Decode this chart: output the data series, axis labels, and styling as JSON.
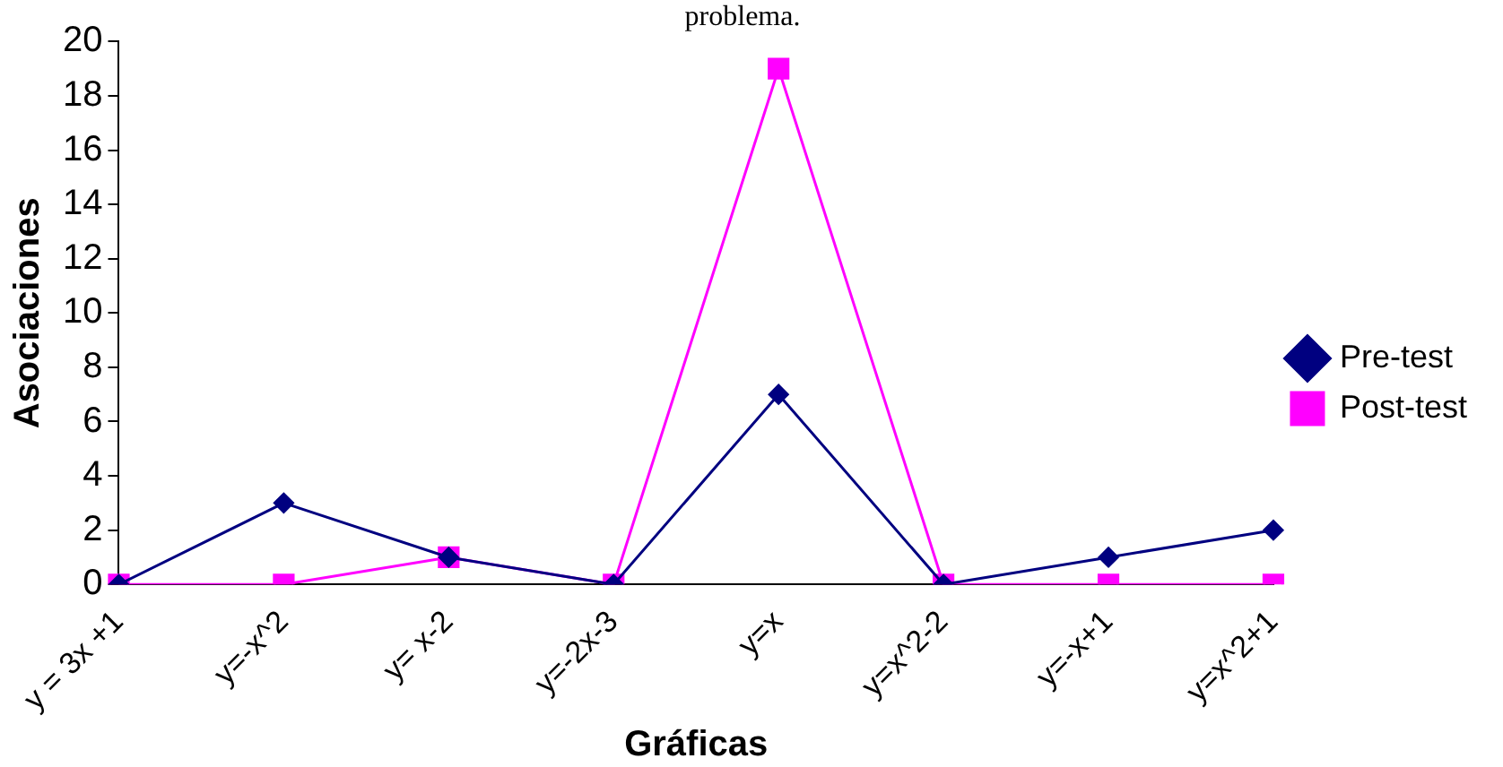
{
  "chart_data": {
    "type": "line",
    "title": "problema.",
    "xlabel": "Gráficas",
    "ylabel": "Asociaciones",
    "categories": [
      "y = 3x +1",
      "y=-x^2",
      "y= x-2",
      "y=-2x-3",
      "y=x",
      "y=x^2-2",
      "y=-x+1",
      "y=x^2+1"
    ],
    "series": [
      {
        "name": "Pre-test",
        "color": "#000080",
        "marker": "diamond",
        "values": [
          0,
          3,
          1,
          0,
          7,
          0,
          1,
          2
        ]
      },
      {
        "name": "Post-test",
        "color": "#ff00ff",
        "marker": "square",
        "values": [
          0,
          0,
          1,
          0,
          19,
          0,
          0,
          0
        ]
      }
    ],
    "ylim": [
      0,
      20
    ],
    "yticks": [
      0,
      2,
      4,
      6,
      8,
      10,
      12,
      14,
      16,
      18,
      20
    ],
    "grid": false,
    "legend": "right"
  }
}
